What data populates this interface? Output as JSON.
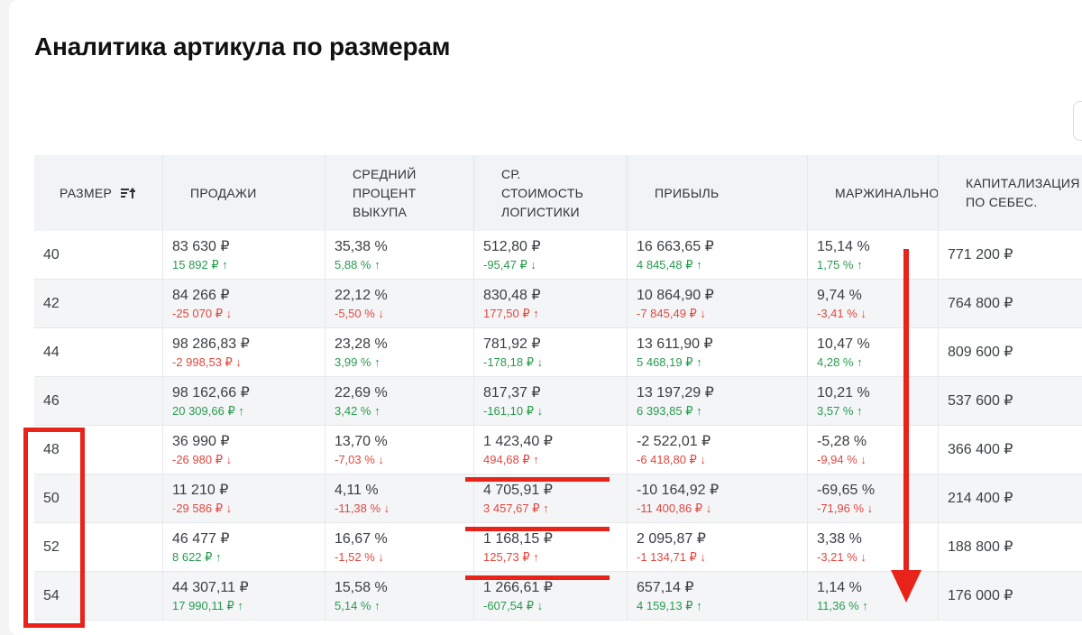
{
  "page": {
    "title": "Аналитика артикула по размерам"
  },
  "icons": {
    "sort": "sort-ascending-icon",
    "up": "arrow-up-icon",
    "down": "arrow-down-icon"
  },
  "colors": {
    "positive": "#2a9a4f",
    "negative": "#e0483f",
    "annotation": "#e8231a"
  },
  "table": {
    "headers": {
      "size": "РАЗМЕР",
      "sales": "ПРОДАЖИ",
      "buyout": "СРЕДНИЙ\nПРОЦЕНТ\nВЫКУПА",
      "logistics": "СР.\nСТОИМОСТЬ\nЛОГИСТИКИ",
      "profit": "ПРИБЫЛЬ",
      "margin": "МАРЖИНАЛЬНО",
      "cap": "КАПИТАЛИЗАЦИЯ\nПО СЕБЕС."
    },
    "rows": [
      {
        "size": "40",
        "sales": {
          "value": "83 630 ₽",
          "delta": "15 892 ₽ ↑",
          "dir": "up"
        },
        "buyout": {
          "value": "35,38 %",
          "delta": "5,88 % ↑",
          "dir": "up"
        },
        "logistics": {
          "value": "512,80 ₽",
          "delta": "-95,47 ₽ ↓",
          "dir": "up"
        },
        "profit": {
          "value": "16 663,65 ₽",
          "delta": "4 845,48 ₽ ↑",
          "dir": "up"
        },
        "margin": {
          "value": "15,14 %",
          "delta": "1,75 % ↑",
          "dir": "up"
        },
        "cap": "771 200 ₽"
      },
      {
        "size": "42",
        "sales": {
          "value": "84 266 ₽",
          "delta": "-25 070 ₽ ↓",
          "dir": "down"
        },
        "buyout": {
          "value": "22,12 %",
          "delta": "-5,50 % ↓",
          "dir": "down"
        },
        "logistics": {
          "value": "830,48 ₽",
          "delta": "177,50 ₽ ↑",
          "dir": "down"
        },
        "profit": {
          "value": "10 864,90 ₽",
          "delta": "-7 845,49 ₽ ↓",
          "dir": "down"
        },
        "margin": {
          "value": "9,74 %",
          "delta": "-3,41 % ↓",
          "dir": "down"
        },
        "cap": "764 800 ₽"
      },
      {
        "size": "44",
        "sales": {
          "value": "98 286,83 ₽",
          "delta": "-2 998,53 ₽ ↓",
          "dir": "down"
        },
        "buyout": {
          "value": "23,28 %",
          "delta": "3,99 % ↑",
          "dir": "up"
        },
        "logistics": {
          "value": "781,92 ₽",
          "delta": "-178,18 ₽ ↓",
          "dir": "up"
        },
        "profit": {
          "value": "13 611,90 ₽",
          "delta": "5 468,19 ₽ ↑",
          "dir": "up"
        },
        "margin": {
          "value": "10,47 %",
          "delta": "4,28 % ↑",
          "dir": "up"
        },
        "cap": "809 600 ₽"
      },
      {
        "size": "46",
        "sales": {
          "value": "98 162,66 ₽",
          "delta": "20 309,66 ₽ ↑",
          "dir": "up"
        },
        "buyout": {
          "value": "22,69 %",
          "delta": "3,42 % ↑",
          "dir": "up"
        },
        "logistics": {
          "value": "817,37 ₽",
          "delta": "-161,10 ₽ ↓",
          "dir": "up"
        },
        "profit": {
          "value": "13 197,29 ₽",
          "delta": "6 393,85 ₽ ↑",
          "dir": "up"
        },
        "margin": {
          "value": "10,21 %",
          "delta": "3,57 % ↑",
          "dir": "up"
        },
        "cap": "537 600 ₽"
      },
      {
        "size": "48",
        "sales": {
          "value": "36 990 ₽",
          "delta": "-26 980 ₽ ↓",
          "dir": "down"
        },
        "buyout": {
          "value": "13,70 %",
          "delta": "-7,03 % ↓",
          "dir": "down"
        },
        "logistics": {
          "value": "1 423,40 ₽",
          "delta": "494,68 ₽ ↑",
          "dir": "down"
        },
        "profit": {
          "value": "-2 522,01 ₽",
          "delta": "-6 418,80 ₽ ↓",
          "dir": "down"
        },
        "margin": {
          "value": "-5,28 %",
          "delta": "-9,94 % ↓",
          "dir": "down"
        },
        "cap": "366 400 ₽"
      },
      {
        "size": "50",
        "sales": {
          "value": "11 210 ₽",
          "delta": "-29 586 ₽ ↓",
          "dir": "down"
        },
        "buyout": {
          "value": "4,11 %",
          "delta": "-11,38 % ↓",
          "dir": "down"
        },
        "logistics": {
          "value": "4 705,91 ₽",
          "delta": "3 457,67 ₽ ↑",
          "dir": "down"
        },
        "profit": {
          "value": "-10 164,92 ₽",
          "delta": "-11 400,86 ₽ ↓",
          "dir": "down"
        },
        "margin": {
          "value": "-69,65 %",
          "delta": "-71,96 % ↓",
          "dir": "down"
        },
        "cap": "214 400 ₽"
      },
      {
        "size": "52",
        "sales": {
          "value": "46 477 ₽",
          "delta": "8 622 ₽ ↑",
          "dir": "up"
        },
        "buyout": {
          "value": "16,67 %",
          "delta": "-1,52 % ↓",
          "dir": "down"
        },
        "logistics": {
          "value": "1 168,15 ₽",
          "delta": "125,73 ₽ ↑",
          "dir": "down"
        },
        "profit": {
          "value": "2 095,87 ₽",
          "delta": "-1 134,71 ₽ ↓",
          "dir": "down"
        },
        "margin": {
          "value": "3,38 %",
          "delta": "-3,21 % ↓",
          "dir": "down"
        },
        "cap": "188 800 ₽"
      },
      {
        "size": "54",
        "sales": {
          "value": "44 307,11 ₽",
          "delta": "17 990,11 ₽ ↑",
          "dir": "up"
        },
        "buyout": {
          "value": "15,58 %",
          "delta": "5,14 % ↑",
          "dir": "up"
        },
        "logistics": {
          "value": "1 266,61 ₽",
          "delta": "-607,54 ₽ ↓",
          "dir": "up"
        },
        "profit": {
          "value": "657,14 ₽",
          "delta": "4 159,13 ₽ ↑",
          "dir": "up"
        },
        "margin": {
          "value": "1,14 %",
          "delta": "11,36 % ↑",
          "dir": "up"
        },
        "cap": "176 000 ₽"
      }
    ]
  }
}
